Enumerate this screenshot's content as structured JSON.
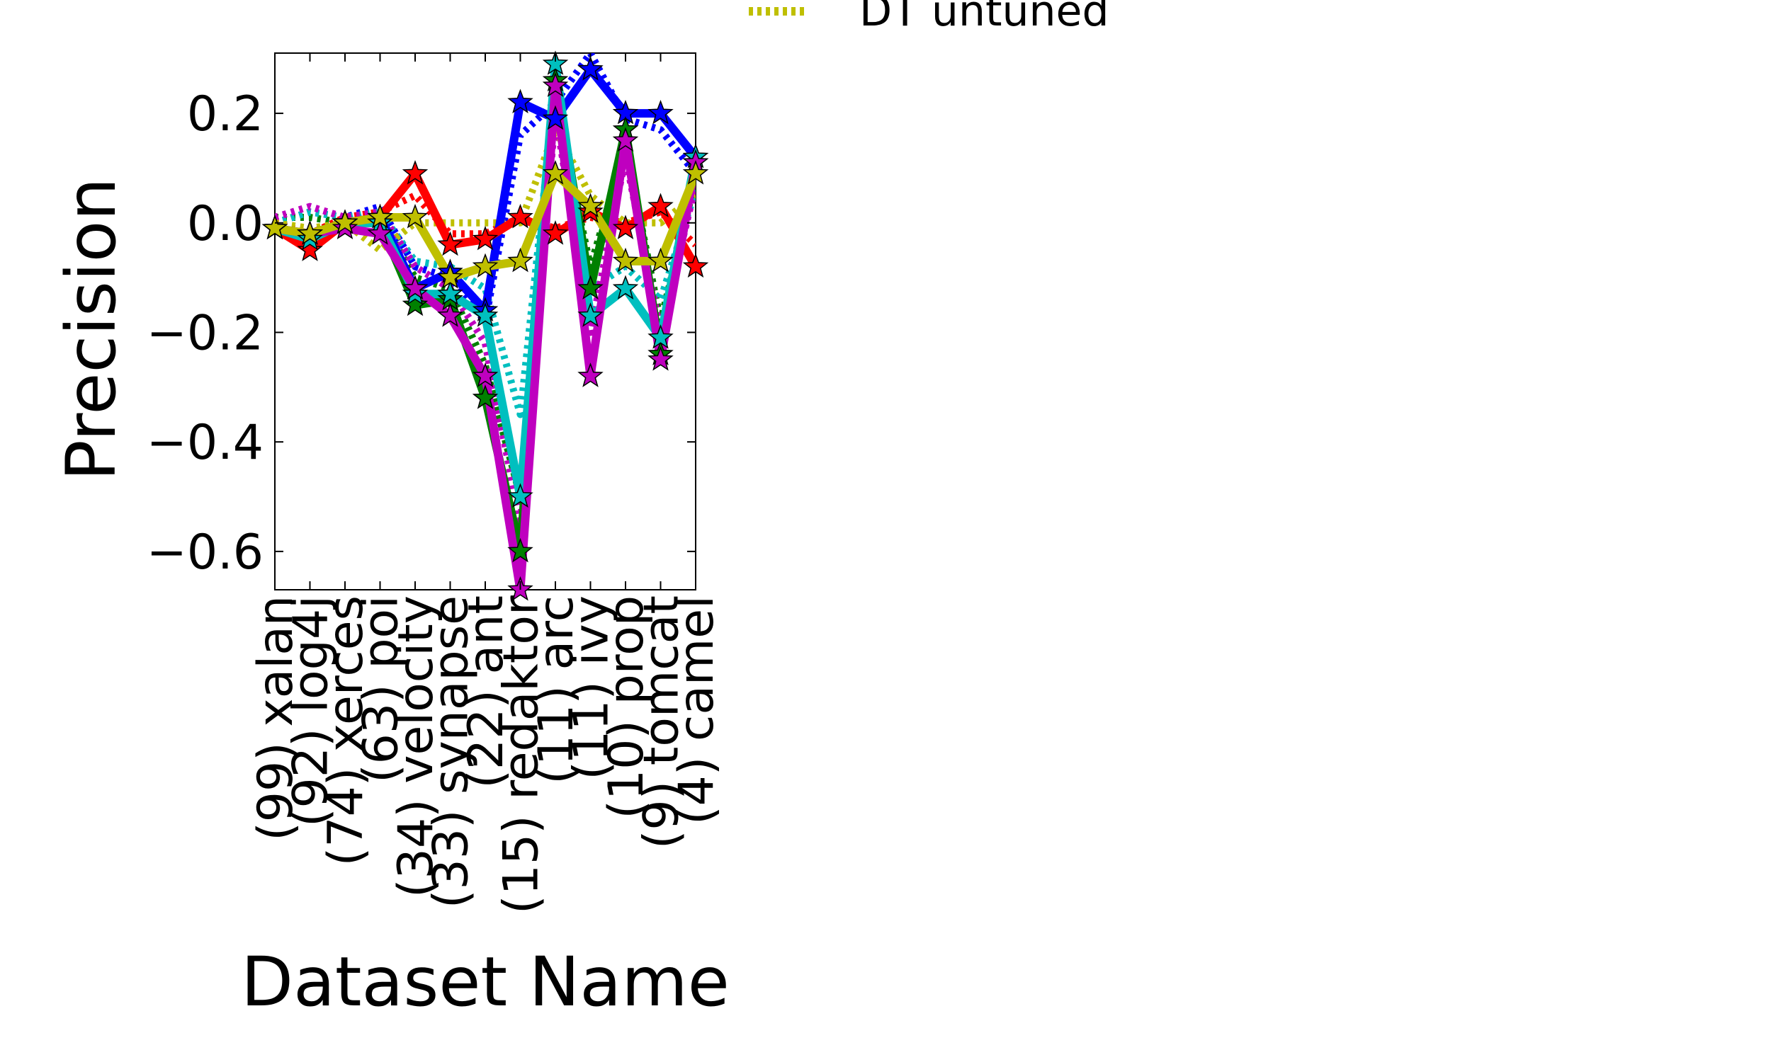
{
  "chart_data": {
    "type": "line",
    "xlabel": "Dataset Name",
    "ylabel": "Precision",
    "categories": [
      "(99) xalan",
      "(92) log4j",
      "(74) xerces",
      "(63) poi",
      "(34) velocity",
      "(33) synapse",
      "(22) ant",
      "(15) redaktor",
      "(11) arc",
      "(11) ivy",
      "(10) prop",
      "(9) tomcat",
      "(4) camel"
    ],
    "ylim": [
      -0.67,
      0.31
    ],
    "yticks": [
      -0.6,
      -0.4,
      -0.2,
      0.0,
      0.2
    ],
    "ytick_labels": [
      "−0.6",
      "−0.4",
      "−0.2",
      "0.0",
      "0.2"
    ],
    "grid": false,
    "legend": {
      "visible_entries": [
        "DT untuned"
      ],
      "placement": "top, outside plot (partially cut off)"
    },
    "series": [
      {
        "color": "#0000ff",
        "style": "solid",
        "marker": "star",
        "values": [
          -0.01,
          -0.02,
          0.0,
          0.01,
          -0.12,
          -0.09,
          -0.16,
          0.22,
          0.19,
          0.28,
          0.2,
          0.2,
          0.12
        ]
      },
      {
        "color": "#0000ff",
        "style": "dotted",
        "values": [
          0.0,
          0.02,
          0.01,
          0.03,
          -0.08,
          -0.1,
          -0.18,
          0.16,
          0.22,
          0.31,
          0.19,
          0.17,
          0.09
        ]
      },
      {
        "color": "#ff0000",
        "style": "solid",
        "marker": "star",
        "values": [
          -0.01,
          -0.05,
          0.0,
          0.01,
          0.09,
          -0.04,
          -0.03,
          0.01,
          -0.02,
          0.02,
          -0.01,
          0.03,
          -0.08
        ]
      },
      {
        "color": "#ff0000",
        "style": "dotted",
        "values": [
          0.0,
          -0.02,
          0.01,
          0.02,
          0.05,
          -0.02,
          -0.02,
          0.01,
          -0.01,
          0.01,
          0.0,
          0.02,
          -0.04
        ]
      },
      {
        "color": "#008000",
        "style": "solid",
        "marker": "star",
        "values": [
          -0.01,
          -0.02,
          0.0,
          0.0,
          -0.15,
          -0.14,
          -0.32,
          -0.6,
          0.26,
          -0.12,
          0.17,
          -0.24,
          0.11
        ]
      },
      {
        "color": "#008000",
        "style": "dotted",
        "values": [
          0.01,
          0.01,
          0.0,
          0.01,
          -0.1,
          -0.12,
          -0.26,
          -0.5,
          0.22,
          -0.08,
          0.14,
          -0.18,
          0.08
        ]
      },
      {
        "color": "#00bfbf",
        "style": "solid",
        "marker": "star",
        "values": [
          -0.01,
          -0.03,
          0.0,
          0.0,
          -0.13,
          -0.13,
          -0.17,
          -0.5,
          0.29,
          -0.17,
          -0.12,
          -0.21,
          0.12
        ]
      },
      {
        "color": "#00bfbf",
        "style": "dotted",
        "values": [
          0.0,
          0.02,
          0.01,
          0.02,
          -0.07,
          -0.08,
          -0.12,
          -0.35,
          0.25,
          -0.12,
          -0.08,
          -0.14,
          0.06
        ]
      },
      {
        "color": "#bf00bf",
        "style": "solid",
        "marker": "star",
        "values": [
          -0.01,
          -0.02,
          -0.01,
          -0.02,
          -0.12,
          -0.17,
          -0.28,
          -0.67,
          0.25,
          -0.28,
          0.15,
          -0.25,
          0.11
        ]
      },
      {
        "color": "#bf00bf",
        "style": "dotted",
        "values": [
          0.01,
          0.03,
          0.01,
          0.02,
          -0.08,
          -0.12,
          -0.22,
          -0.55,
          0.2,
          -0.2,
          0.12,
          -0.2,
          0.07
        ]
      },
      {
        "color": "#bfbf00",
        "style": "solid",
        "marker": "star",
        "values": [
          -0.01,
          -0.02,
          0.0,
          0.01,
          0.01,
          -0.1,
          -0.08,
          -0.07,
          0.09,
          0.03,
          -0.07,
          -0.07,
          0.09
        ]
      },
      {
        "name": "DT untuned",
        "color": "#bfbf00",
        "style": "dotted",
        "values": [
          0.0,
          -0.01,
          0.0,
          -0.05,
          0.0,
          0.0,
          0.0,
          0.0,
          0.17,
          0.05,
          0.0,
          0.0,
          0.05
        ]
      }
    ]
  }
}
